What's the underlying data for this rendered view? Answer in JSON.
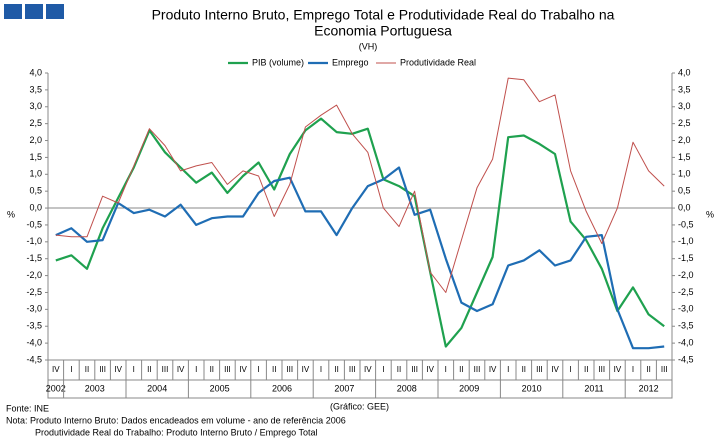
{
  "chart_data": {
    "type": "line",
    "title_lines": [
      "Produto Interno Bruto, Emprego Total e Produtividade Real do Trabalho na",
      "Economia Portuguesa"
    ],
    "subtitle": "(VH)",
    "ylabel": "%",
    "y2label": "%",
    "categories": [
      "IV",
      "I",
      "II",
      "III",
      "IV",
      "I",
      "II",
      "III",
      "IV",
      "I",
      "II",
      "III",
      "IV",
      "I",
      "II",
      "III",
      "IV",
      "I",
      "II",
      "III",
      "IV",
      "I",
      "II",
      "III",
      "IV",
      "I",
      "II",
      "III",
      "IV",
      "I",
      "II",
      "III",
      "IV",
      "I",
      "II",
      "III",
      "IV",
      "I",
      "II",
      "III"
    ],
    "year_labels": [
      "2002",
      "2003",
      "2004",
      "2005",
      "2006",
      "2007",
      "2008",
      "2009",
      "2010",
      "2011",
      "2012"
    ],
    "series": [
      {
        "name": "PIB (volume)",
        "color": "#1fa14f",
        "width": 2.2,
        "values": [
          -1.55,
          -1.4,
          -1.8,
          -0.6,
          0.3,
          1.2,
          2.3,
          1.65,
          1.2,
          0.75,
          1.05,
          0.45,
          0.95,
          1.35,
          0.55,
          1.6,
          2.3,
          2.65,
          2.25,
          2.2,
          2.35,
          0.85,
          0.65,
          0.35,
          -1.9,
          -4.1,
          -3.55,
          -2.5,
          -1.45,
          2.1,
          2.15,
          1.9,
          1.6,
          -0.4,
          -0.95,
          -1.8,
          -3.05,
          -2.35,
          -3.15,
          -3.5
        ]
      },
      {
        "name": "Emprego",
        "color": "#1f6db4",
        "width": 2.2,
        "values": [
          -0.8,
          -0.6,
          -1.0,
          -0.95,
          0.15,
          -0.15,
          -0.05,
          -0.25,
          0.1,
          -0.5,
          -0.3,
          -0.25,
          -0.25,
          0.45,
          0.8,
          0.9,
          -0.1,
          -0.1,
          -0.8,
          0.0,
          0.65,
          0.85,
          1.2,
          -0.2,
          -0.05,
          -1.5,
          -2.8,
          -3.05,
          -2.85,
          -1.7,
          -1.55,
          -1.25,
          -1.7,
          -1.55,
          -0.85,
          -0.8,
          -3.0,
          -4.15,
          -4.15,
          -4.1
        ]
      },
      {
        "name": "Produtividade Real",
        "color": "#c0504d",
        "width": 1,
        "values": [
          -0.8,
          -0.85,
          -0.85,
          0.35,
          0.15,
          1.25,
          2.35,
          1.85,
          1.1,
          1.25,
          1.35,
          0.7,
          1.1,
          0.95,
          -0.25,
          0.7,
          2.4,
          2.75,
          3.05,
          2.2,
          1.65,
          0.0,
          -0.55,
          0.5,
          -1.9,
          -2.5,
          -0.95,
          0.6,
          1.45,
          3.85,
          3.8,
          3.15,
          3.35,
          1.1,
          -0.1,
          -1.05,
          0.0,
          1.95,
          1.1,
          0.65
        ]
      }
    ],
    "ylim": [
      -4.5,
      4.0
    ],
    "yticks": [
      {
        "value": 4.0,
        "label": "4,0"
      },
      {
        "value": 3.5,
        "label": "3,5"
      },
      {
        "value": 3.0,
        "label": "3,0"
      },
      {
        "value": 2.5,
        "label": "2,5"
      },
      {
        "value": 2.0,
        "label": "2,0"
      },
      {
        "value": 1.5,
        "label": "1,5"
      },
      {
        "value": 1.0,
        "label": "1,0"
      },
      {
        "value": 0.5,
        "label": "0,5"
      },
      {
        "value": 0.0,
        "label": "0,0"
      },
      {
        "value": -0.5,
        "label": "-0,5"
      },
      {
        "value": -1.0,
        "label": "-1,0"
      },
      {
        "value": -1.5,
        "label": "-1,5"
      },
      {
        "value": -2.0,
        "label": "-2,0"
      },
      {
        "value": -2.5,
        "label": "-2,5"
      },
      {
        "value": -3.0,
        "label": "-3,0"
      },
      {
        "value": -3.5,
        "label": "-3,5"
      },
      {
        "value": -4.0,
        "label": "-4,0"
      },
      {
        "value": -4.5,
        "label": "-4,5"
      }
    ],
    "y2lim": [
      -4.5,
      4.0
    ],
    "y2ticks": [
      {
        "value": 4.0,
        "label": "4,0"
      },
      {
        "value": 3.5,
        "label": "3,5"
      },
      {
        "value": 3.0,
        "label": "3,0"
      },
      {
        "value": 2.5,
        "label": "2,5"
      },
      {
        "value": 2.0,
        "label": "2,0"
      },
      {
        "value": 1.5,
        "label": "1,5"
      },
      {
        "value": 1.0,
        "label": "1,0"
      },
      {
        "value": 0.5,
        "label": "0,5"
      },
      {
        "value": 0.0,
        "label": "0,0"
      },
      {
        "value": -0.5,
        "label": "-0,5"
      },
      {
        "value": -1.0,
        "label": "-1,0"
      },
      {
        "value": -1.5,
        "label": "-1,5"
      },
      {
        "value": -2.0,
        "label": "-2,0"
      },
      {
        "value": -2.5,
        "label": "-2,5"
      },
      {
        "value": -3.0,
        "label": "-3,0"
      },
      {
        "value": -3.5,
        "label": "-3,5"
      },
      {
        "value": -4.0,
        "label": "-4,0"
      },
      {
        "value": -4.5,
        "label": "-4,5"
      }
    ],
    "source": "Fonte: INE",
    "credit": "(Gráfico: GEE)",
    "notes": [
      "Nota: Produto Interno Bruto: Dados  encadeados  em volume  - ano de referência 2006",
      "Produtividade  Real do Trabalho: Produto Interno Bruto / Emprego Total"
    ]
  }
}
